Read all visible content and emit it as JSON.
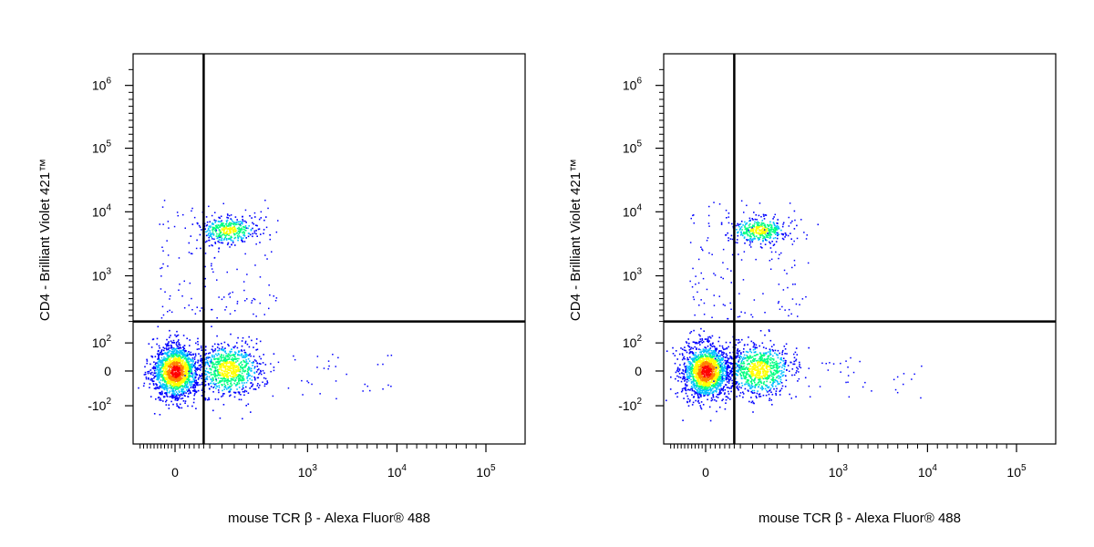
{
  "chart_data": [
    {
      "type": "scatter",
      "xlabel": "mouse TCR β - Alexa Fluor® 488",
      "ylabel": "CD4 - Brilliant Violet 421™",
      "x_scale": "biexponential",
      "y_scale": "biexponential",
      "x_ticks": [
        {
          "value": 0,
          "base": "0",
          "exp": ""
        },
        {
          "value": 1000,
          "base": "10",
          "exp": "3"
        },
        {
          "value": 10000,
          "base": "10",
          "exp": "4"
        },
        {
          "value": 100000,
          "base": "10",
          "exp": "5"
        }
      ],
      "y_ticks": [
        {
          "value": -100,
          "base": "-10",
          "exp": "2"
        },
        {
          "value": 0,
          "base": "0",
          "exp": ""
        },
        {
          "value": 100,
          "base": "10",
          "exp": "2"
        },
        {
          "value": 1000,
          "base": "10",
          "exp": "3"
        },
        {
          "value": 10000,
          "base": "10",
          "exp": "4"
        },
        {
          "value": 100000,
          "base": "10",
          "exp": "5"
        },
        {
          "value": 1000000,
          "base": "10",
          "exp": "6"
        }
      ],
      "gates": {
        "x": 150,
        "y": 200
      },
      "populations": [
        {
          "x_center": 0,
          "y_center": 0,
          "density": "high"
        },
        {
          "x_center": 350,
          "y_center": 0,
          "density": "medium"
        },
        {
          "x_center": 350,
          "y_center": 7500,
          "density": "medium"
        }
      ],
      "density_colors": [
        "#0000ff",
        "#00c0ff",
        "#00ff80",
        "#ffff00",
        "#ff8000",
        "#ff0000"
      ]
    },
    {
      "type": "scatter",
      "xlabel": "mouse TCR β - Alexa Fluor® 488",
      "ylabel": "CD4 - Brilliant Violet 421™",
      "x_scale": "biexponential",
      "y_scale": "biexponential",
      "x_ticks": [
        {
          "value": 0,
          "base": "0",
          "exp": ""
        },
        {
          "value": 1000,
          "base": "10",
          "exp": "3"
        },
        {
          "value": 10000,
          "base": "10",
          "exp": "4"
        },
        {
          "value": 100000,
          "base": "10",
          "exp": "5"
        }
      ],
      "y_ticks": [
        {
          "value": -100,
          "base": "-10",
          "exp": "2"
        },
        {
          "value": 0,
          "base": "0",
          "exp": ""
        },
        {
          "value": 100,
          "base": "10",
          "exp": "2"
        },
        {
          "value": 1000,
          "base": "10",
          "exp": "3"
        },
        {
          "value": 10000,
          "base": "10",
          "exp": "4"
        },
        {
          "value": 100000,
          "base": "10",
          "exp": "5"
        },
        {
          "value": 1000000,
          "base": "10",
          "exp": "6"
        }
      ],
      "gates": {
        "x": 150,
        "y": 200
      },
      "populations": [
        {
          "x_center": 0,
          "y_center": 0,
          "density": "high"
        },
        {
          "x_center": 350,
          "y_center": 0,
          "density": "medium"
        },
        {
          "x_center": 350,
          "y_center": 7500,
          "density": "medium"
        }
      ],
      "density_colors": [
        "#0000ff",
        "#00c0ff",
        "#00ff80",
        "#ffff00",
        "#ff8000",
        "#ff0000"
      ]
    }
  ]
}
